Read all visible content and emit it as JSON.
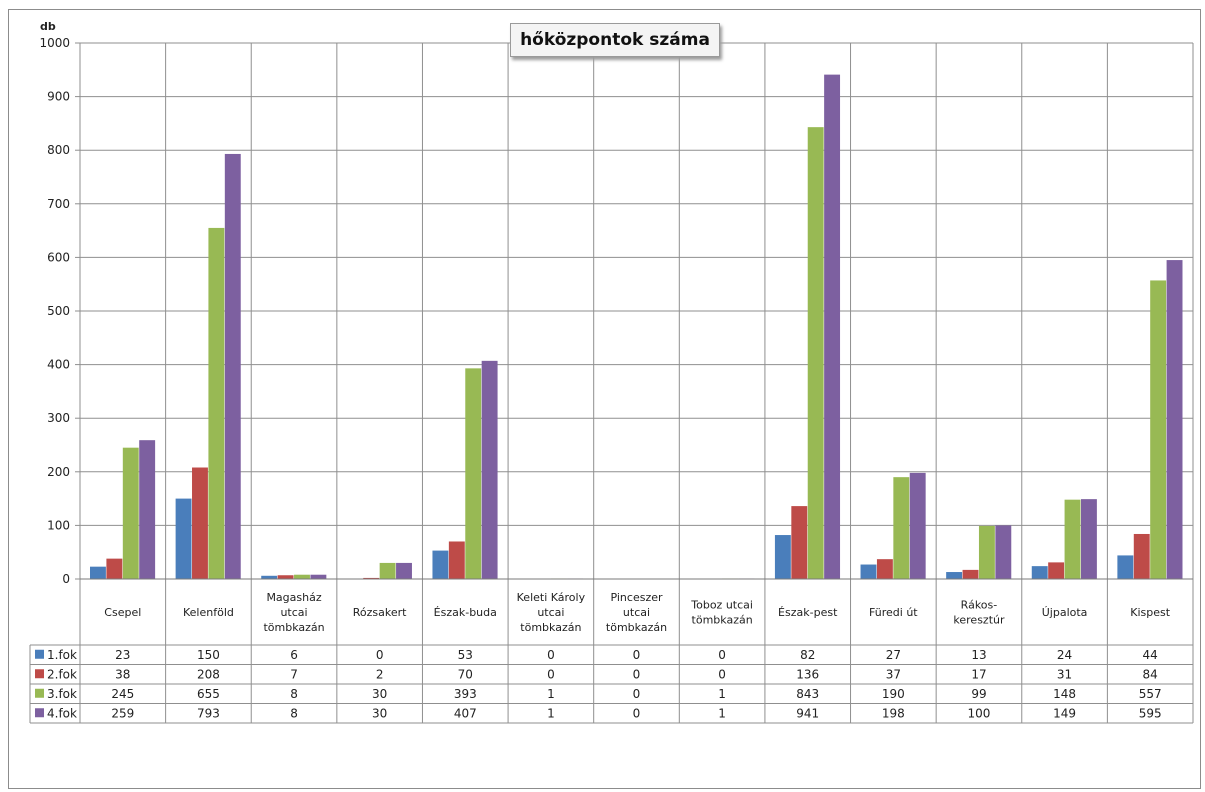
{
  "chart_data": {
    "type": "bar",
    "title": "hőközpontok száma",
    "ylabel": "db",
    "xlabel": "",
    "ylim": [
      0,
      1000
    ],
    "yticks": [
      0,
      100,
      200,
      300,
      400,
      500,
      600,
      700,
      800,
      900,
      1000
    ],
    "grid": true,
    "legend": "table-left",
    "categories": [
      [
        "Csepel"
      ],
      [
        "Kelenföld"
      ],
      [
        "Magasház",
        "utcai",
        "tömbkazán"
      ],
      [
        "Rózsakert"
      ],
      [
        "Észak-buda"
      ],
      [
        "Keleti Károly",
        "utcai",
        "tömbkazán"
      ],
      [
        "Pinceszer",
        "utcai",
        "tömbkazán"
      ],
      [
        "Toboz utcai",
        "tömbkazán"
      ],
      [
        "Észak-pest"
      ],
      [
        "Füredi út"
      ],
      [
        "Rákos-",
        "keresztúr"
      ],
      [
        "Újpalota"
      ],
      [
        "Kispest"
      ]
    ],
    "series": [
      {
        "name": "1.fok",
        "color": "#4a7ebb",
        "values": [
          23,
          150,
          6,
          0,
          53,
          0,
          0,
          0,
          82,
          27,
          13,
          24,
          44
        ]
      },
      {
        "name": "2.fok",
        "color": "#be4b48",
        "values": [
          38,
          208,
          7,
          2,
          70,
          0,
          0,
          0,
          136,
          37,
          17,
          31,
          84
        ]
      },
      {
        "name": "3.fok",
        "color": "#98b954",
        "values": [
          245,
          655,
          8,
          30,
          393,
          1,
          0,
          1,
          843,
          190,
          99,
          148,
          557
        ]
      },
      {
        "name": "4.fok",
        "color": "#7d60a0",
        "values": [
          259,
          793,
          8,
          30,
          407,
          1,
          0,
          1,
          941,
          198,
          100,
          149,
          595
        ]
      }
    ]
  }
}
